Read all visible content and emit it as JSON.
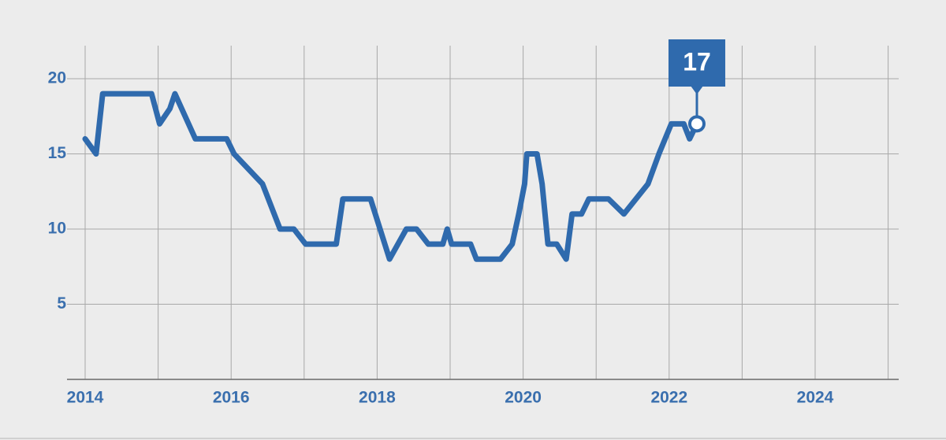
{
  "chart_data": {
    "type": "line",
    "x": [
      2014.0,
      2014.15,
      2014.24,
      2014.91,
      2015.02,
      2015.16,
      2015.23,
      2015.51,
      2015.94,
      2016.04,
      2016.43,
      2016.67,
      2016.86,
      2017.02,
      2017.44,
      2017.53,
      2017.91,
      2018.17,
      2018.4,
      2018.54,
      2018.7,
      2018.9,
      2018.96,
      2019.02,
      2019.28,
      2019.36,
      2019.69,
      2019.85,
      2019.94,
      2020.02,
      2020.05,
      2020.19,
      2020.26,
      2020.34,
      2020.46,
      2020.59,
      2020.67,
      2020.8,
      2020.9,
      2021.17,
      2021.38,
      2021.71,
      2021.86,
      2022.03,
      2022.2,
      2022.28,
      2022.38
    ],
    "series": [
      {
        "color": "#2f6aad",
        "values": [
          16,
          15,
          19,
          19,
          17,
          18,
          19,
          16,
          16,
          15,
          13,
          10,
          10,
          9,
          9,
          12,
          12,
          8,
          10,
          10,
          9,
          9,
          10,
          9,
          9,
          8,
          8,
          9,
          11,
          13,
          15,
          15,
          13,
          9,
          9,
          8,
          11,
          11,
          12,
          12,
          11,
          13,
          15,
          17,
          17,
          16,
          17
        ]
      }
    ],
    "xlim": [
      2014,
      2025.2
    ],
    "xticks": [
      2014,
      2016,
      2018,
      2020,
      2022,
      2024
    ],
    "xgrid": [
      2014,
      2015,
      2016,
      2017,
      2018,
      2019,
      2020,
      2021,
      2022,
      2023,
      2024,
      2025
    ],
    "ylim": [
      0,
      22.2
    ],
    "yticks": [
      5,
      10,
      15,
      20
    ],
    "grid": true
  }
}
